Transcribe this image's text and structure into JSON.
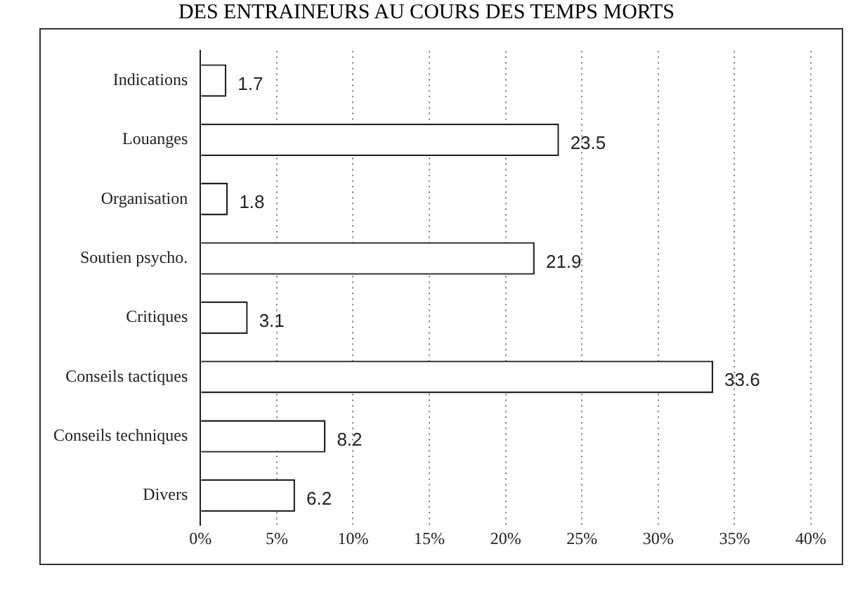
{
  "chart_data": {
    "type": "bar",
    "orientation": "horizontal",
    "title": "DES ENTRAINEURS AU COURS DES TEMPS MORTS",
    "categories": [
      "Indications",
      "Louanges",
      "Organisation",
      "Soutien psycho.",
      "Critiques",
      "Conseils tactiques",
      "Conseils techniques",
      "Divers"
    ],
    "values": [
      1.7,
      23.5,
      1.8,
      21.9,
      3.1,
      33.6,
      8.2,
      6.2
    ],
    "color": "#ffffff",
    "xlim": [
      0,
      40
    ],
    "xticks": [
      {
        "value": 0,
        "label": "0%"
      },
      {
        "value": 5,
        "label": "5%"
      },
      {
        "value": 10,
        "label": "10%"
      },
      {
        "value": 15,
        "label": "15%"
      },
      {
        "value": 20,
        "label": "20%"
      },
      {
        "value": 25,
        "label": "25%"
      },
      {
        "value": 30,
        "label": "30%"
      },
      {
        "value": 35,
        "label": "35%"
      },
      {
        "value": 40,
        "label": "40%"
      }
    ],
    "grid": "x",
    "data_labels": true
  }
}
